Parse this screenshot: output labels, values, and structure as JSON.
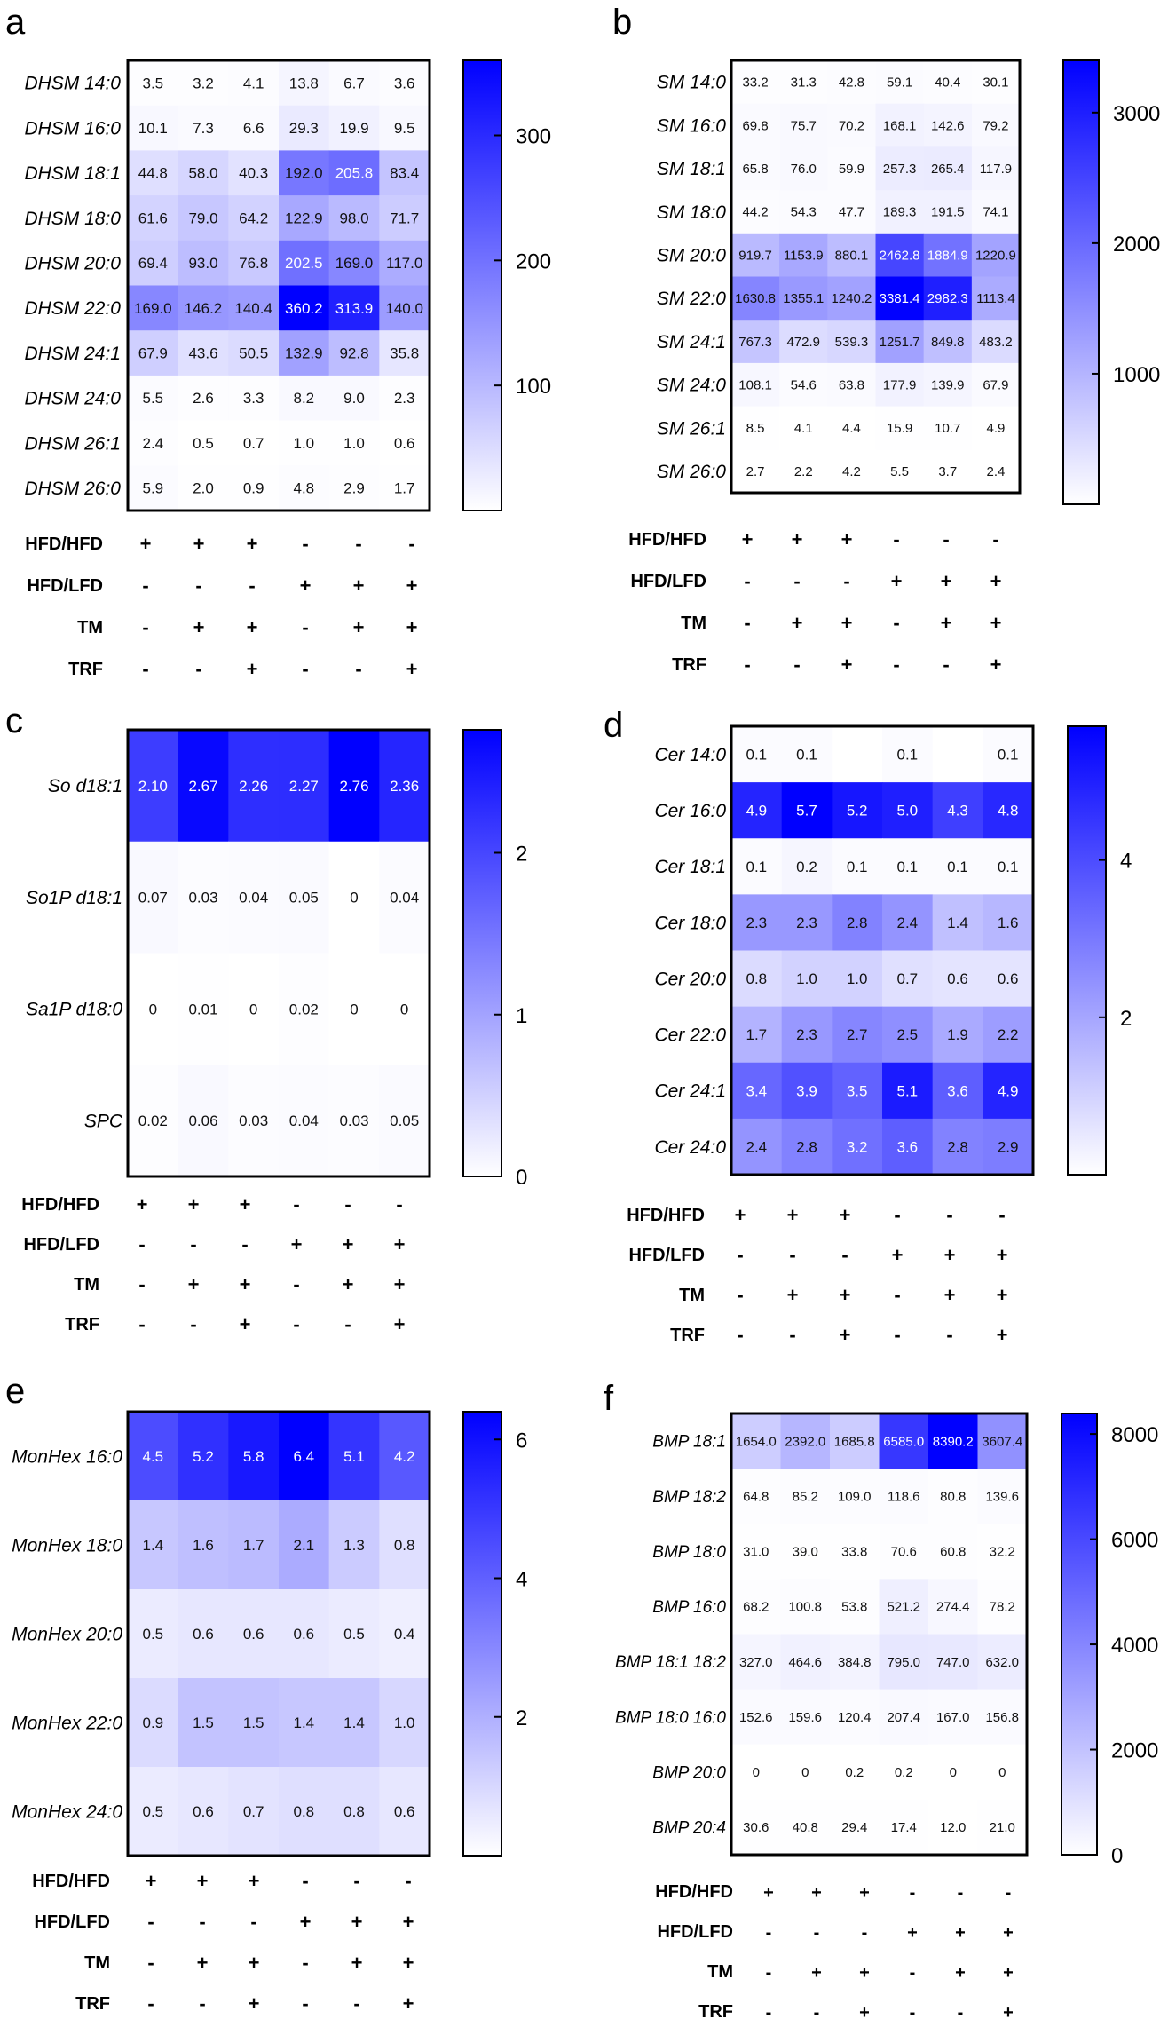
{
  "figure": {
    "row_factors": [
      "HFD/HFD",
      "HFD/LFD",
      "TM",
      "TRF"
    ],
    "design": [
      [
        "+",
        "+",
        "+",
        "-",
        "-",
        "-"
      ],
      [
        "-",
        "-",
        "-",
        "+",
        "+",
        "+"
      ],
      [
        "-",
        "+",
        "+",
        "-",
        "+",
        "+"
      ],
      [
        "-",
        "-",
        "+",
        "-",
        "-",
        "+"
      ]
    ]
  },
  "chart_data": [
    {
      "panel": "a",
      "type": "heatmap",
      "rows": [
        "DHSM 14:0",
        "DHSM 16:0",
        "DHSM 18:1",
        "DHSM 18:0",
        "DHSM 20:0",
        "DHSM 22:0",
        "DHSM 24:1",
        "DHSM 24:0",
        "DHSM 26:1",
        "DHSM 26:0"
      ],
      "values": [
        [
          "3.5",
          "3.2",
          "4.1",
          "13.8",
          "6.7",
          "3.6"
        ],
        [
          "10.1",
          "7.3",
          "6.6",
          "29.3",
          "19.9",
          "9.5"
        ],
        [
          "44.8",
          "58.0",
          "40.3",
          "192.0",
          "205.8",
          "83.4"
        ],
        [
          "61.6",
          "79.0",
          "64.2",
          "122.9",
          "98.0",
          "71.7"
        ],
        [
          "69.4",
          "93.0",
          "76.8",
          "202.5",
          "169.0",
          "117.0"
        ],
        [
          "169.0",
          "146.2",
          "140.4",
          "360.2",
          "313.9",
          "140.0"
        ],
        [
          "67.9",
          "43.6",
          "50.5",
          "132.9",
          "92.8",
          "35.8"
        ],
        [
          "5.5",
          "2.6",
          "3.3",
          "8.2",
          "9.0",
          "2.3"
        ],
        [
          "2.4",
          "0.5",
          "0.7",
          "1.0",
          "1.0",
          "0.6"
        ],
        [
          "5.9",
          "2.0",
          "0.9",
          "4.8",
          "2.9",
          "1.7"
        ]
      ],
      "colorbar": {
        "min": 0,
        "max": 360,
        "ticks": [
          100,
          200,
          300
        ]
      }
    },
    {
      "panel": "b",
      "type": "heatmap",
      "rows": [
        "SM 14:0",
        "SM 16:0",
        "SM 18:1",
        "SM 18:0",
        "SM 20:0",
        "SM 22:0",
        "SM 24:1",
        "SM 24:0",
        "SM 26:1",
        "SM 26:0"
      ],
      "values": [
        [
          "33.2",
          "31.3",
          "42.8",
          "59.1",
          "40.4",
          "30.1"
        ],
        [
          "69.8",
          "75.7",
          "70.2",
          "168.1",
          "142.6",
          "79.2"
        ],
        [
          "65.8",
          "76.0",
          "59.9",
          "257.3",
          "265.4",
          "117.9"
        ],
        [
          "44.2",
          "54.3",
          "47.7",
          "189.3",
          "191.5",
          "74.1"
        ],
        [
          "919.7",
          "1153.9",
          "880.1",
          "2462.8",
          "1884.9",
          "1220.9"
        ],
        [
          "1630.8",
          "1355.1",
          "1240.2",
          "3381.4",
          "2982.3",
          "1113.4"
        ],
        [
          "767.3",
          "472.9",
          "539.3",
          "1251.7",
          "849.8",
          "483.2"
        ],
        [
          "108.1",
          "54.6",
          "63.8",
          "177.9",
          "139.9",
          "67.9"
        ],
        [
          "8.5",
          "4.1",
          "4.4",
          "15.9",
          "10.7",
          "4.9"
        ],
        [
          "2.7",
          "2.2",
          "4.2",
          "5.5",
          "3.7",
          "2.4"
        ]
      ],
      "colorbar": {
        "min": 0,
        "max": 3400,
        "ticks": [
          1000,
          2000,
          3000
        ]
      }
    },
    {
      "panel": "c",
      "type": "heatmap",
      "rows": [
        "So d18:1",
        "So1P d18:1",
        "Sa1P d18:0",
        "SPC"
      ],
      "values": [
        [
          "2.10",
          "2.67",
          "2.26",
          "2.27",
          "2.76",
          "2.36"
        ],
        [
          "0.07",
          "0.03",
          "0.04",
          "0.05",
          "0",
          "0.04"
        ],
        [
          "0",
          "0.01",
          "0",
          "0.02",
          "0",
          "0"
        ],
        [
          "0.02",
          "0.06",
          "0.03",
          "0.04",
          "0.03",
          "0.05"
        ]
      ],
      "colorbar": {
        "min": 0,
        "max": 2.76,
        "ticks": [
          0,
          1,
          2
        ]
      }
    },
    {
      "panel": "d",
      "type": "heatmap",
      "rows": [
        "Cer 14:0",
        "Cer 16:0",
        "Cer 18:1",
        "Cer 18:0",
        "Cer 20:0",
        "Cer 22:0",
        "Cer 24:1",
        "Cer 24:0"
      ],
      "values": [
        [
          "0.1",
          "0.1",
          "",
          "0.1",
          "",
          "0.1"
        ],
        [
          "4.9",
          "5.7",
          "5.2",
          "5.0",
          "4.3",
          "4.8"
        ],
        [
          "0.1",
          "0.2",
          "0.1",
          "0.1",
          "0.1",
          "0.1"
        ],
        [
          "2.3",
          "2.3",
          "2.8",
          "2.4",
          "1.4",
          "1.6"
        ],
        [
          "0.8",
          "1.0",
          "1.0",
          "0.7",
          "0.6",
          "0.6"
        ],
        [
          "1.7",
          "2.3",
          "2.7",
          "2.5",
          "1.9",
          "2.2"
        ],
        [
          "3.4",
          "3.9",
          "3.5",
          "5.1",
          "3.6",
          "4.9"
        ],
        [
          "2.4",
          "2.8",
          "3.2",
          "3.6",
          "2.8",
          "2.9"
        ]
      ],
      "colorbar": {
        "min": 0,
        "max": 5.7,
        "ticks": [
          2,
          4
        ]
      }
    },
    {
      "panel": "e",
      "type": "heatmap",
      "rows": [
        "MonHex 16:0",
        "MonHex 18:0",
        "MonHex 20:0",
        "MonHex 22:0",
        "MonHex 24:0"
      ],
      "values": [
        [
          "4.5",
          "5.2",
          "5.8",
          "6.4",
          "5.1",
          "4.2"
        ],
        [
          "1.4",
          "1.6",
          "1.7",
          "2.1",
          "1.3",
          "0.8"
        ],
        [
          "0.5",
          "0.6",
          "0.6",
          "0.6",
          "0.5",
          "0.4"
        ],
        [
          "0.9",
          "1.5",
          "1.5",
          "1.4",
          "1.4",
          "1.0"
        ],
        [
          "0.5",
          "0.6",
          "0.7",
          "0.8",
          "0.8",
          "0.6"
        ]
      ],
      "colorbar": {
        "min": 0,
        "max": 6.4,
        "ticks": [
          2,
          4,
          6
        ]
      }
    },
    {
      "panel": "f",
      "type": "heatmap",
      "rows": [
        "BMP 18:1",
        "BMP 18:2",
        "BMP 18:0",
        "BMP 16:0",
        "BMP 18:1 18:2",
        "BMP 18:0 16:0",
        "BMP 20:0",
        "BMP 20:4"
      ],
      "values": [
        [
          "1654.0",
          "2392.0",
          "1685.8",
          "6585.0",
          "8390.2",
          "3607.4"
        ],
        [
          "64.8",
          "85.2",
          "109.0",
          "118.6",
          "80.8",
          "139.6"
        ],
        [
          "31.0",
          "39.0",
          "33.8",
          "70.6",
          "60.8",
          "32.2"
        ],
        [
          "68.2",
          "100.8",
          "53.8",
          "521.2",
          "274.4",
          "78.2"
        ],
        [
          "327.0",
          "464.6",
          "384.8",
          "795.0",
          "747.0",
          "632.0"
        ],
        [
          "152.6",
          "159.6",
          "120.4",
          "207.4",
          "167.0",
          "156.8"
        ],
        [
          "0",
          "0",
          "0.2",
          "0.2",
          "0",
          "0"
        ],
        [
          "30.6",
          "40.8",
          "29.4",
          "17.4",
          "12.0",
          "21.0"
        ]
      ],
      "colorbar": {
        "min": 0,
        "max": 8390,
        "ticks": [
          0,
          2000,
          4000,
          6000,
          8000
        ]
      }
    }
  ]
}
